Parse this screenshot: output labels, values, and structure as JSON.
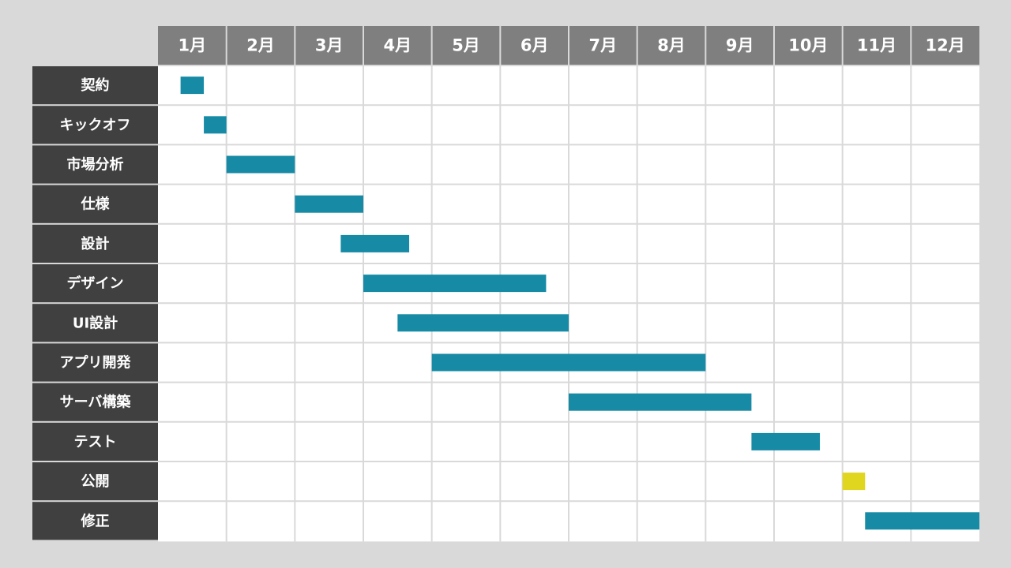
{
  "chart_data": {
    "type": "gantt",
    "title": "",
    "months": [
      "1月",
      "2月",
      "3月",
      "4月",
      "5月",
      "6月",
      "7月",
      "8月",
      "9月",
      "10月",
      "11月",
      "12月"
    ],
    "tasks": [
      {
        "name": "契約",
        "start": 1.33,
        "end": 1.67,
        "color": "#178ba5"
      },
      {
        "name": "キックオフ",
        "start": 1.67,
        "end": 2.0,
        "color": "#178ba5"
      },
      {
        "name": "市場分析",
        "start": 2.0,
        "end": 3.0,
        "color": "#178ba5"
      },
      {
        "name": "仕様",
        "start": 3.0,
        "end": 4.0,
        "color": "#178ba5"
      },
      {
        "name": "設計",
        "start": 3.67,
        "end": 4.67,
        "color": "#178ba5"
      },
      {
        "name": "デザイン",
        "start": 4.0,
        "end": 6.67,
        "color": "#178ba5"
      },
      {
        "name": "UI設計",
        "start": 4.5,
        "end": 7.0,
        "color": "#178ba5"
      },
      {
        "name": "アプリ開発",
        "start": 5.0,
        "end": 9.0,
        "color": "#178ba5"
      },
      {
        "name": "サーバ構築",
        "start": 7.0,
        "end": 9.67,
        "color": "#178ba5"
      },
      {
        "name": "テスト",
        "start": 9.67,
        "end": 10.67,
        "color": "#178ba5"
      },
      {
        "name": "公開",
        "start": 11.0,
        "end": 11.33,
        "color": "#e0d51f"
      },
      {
        "name": "修正",
        "start": 11.33,
        "end": 13.0,
        "color": "#178ba5"
      }
    ],
    "colors": {
      "page_background": "#d9d9d9",
      "header_background": "#7f7f7f",
      "label_background": "#404040",
      "grid_background": "#ffffff",
      "grid_line": "#d9d9d9",
      "task_bar": "#178ba5",
      "milestone_bar": "#e0d51f"
    }
  }
}
